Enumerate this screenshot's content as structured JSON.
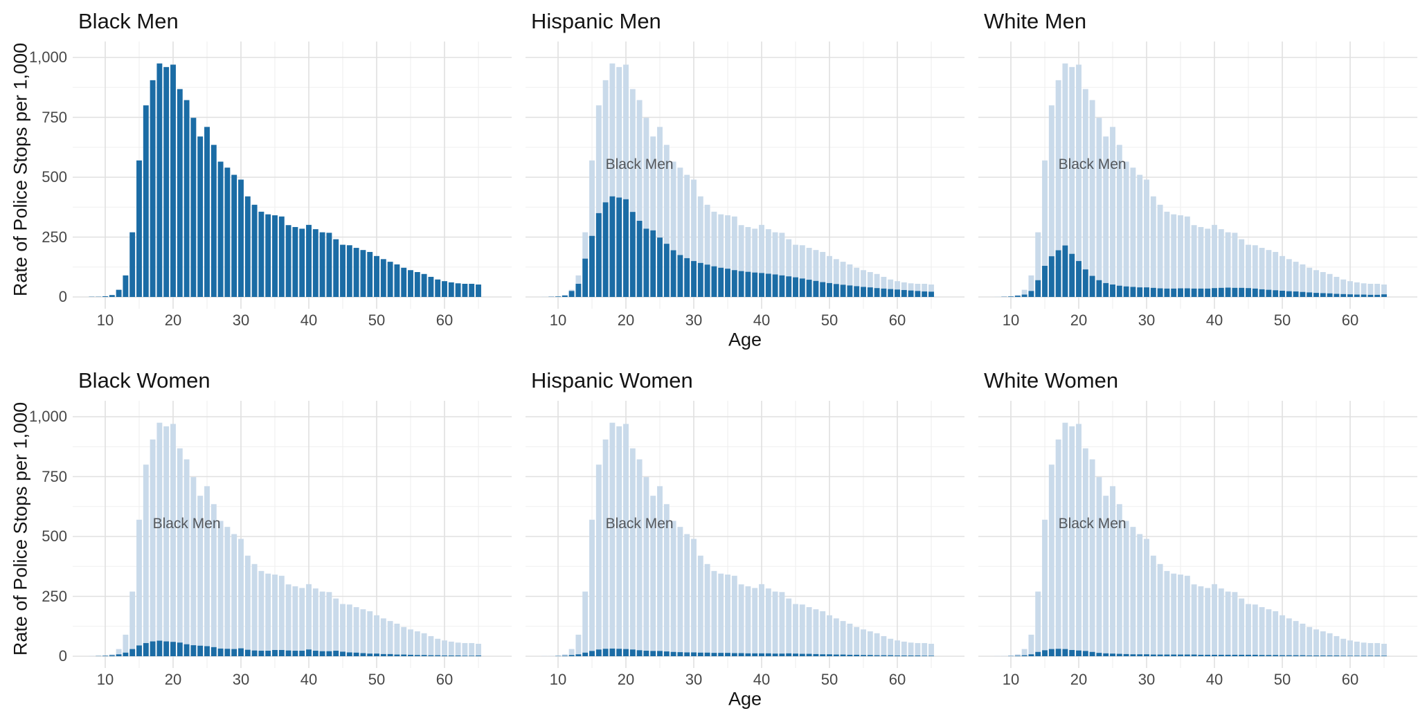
{
  "figure": {
    "background": "#ffffff",
    "bar_color": "#1b6ca5",
    "reference_color": "#c9daea",
    "grid_major_color": "#e0e0e0",
    "grid_minor_color": "#efefef",
    "axis_text_color": "#474747",
    "title_color": "#141414",
    "annotation": {
      "label": "Black Men",
      "color": "#53575c",
      "age": 22,
      "value": 550
    }
  },
  "axes": {
    "x_label": "Age",
    "y_label": "Rate of Police Stops per 1,000",
    "x_ticks": [
      10,
      20,
      30,
      40,
      50,
      60
    ],
    "x_minor_ticks": [
      15,
      25,
      35,
      45,
      55,
      65
    ],
    "y_ticks": [
      0,
      250,
      500,
      750,
      1000
    ],
    "y_minor_ticks": [
      125,
      375,
      625,
      875
    ],
    "x_range": [
      5.2,
      69.8
    ],
    "y_range": [
      0,
      1000
    ]
  },
  "chart_data": {
    "type": "bar",
    "x_field": "age",
    "ages": [
      8,
      9,
      10,
      11,
      12,
      13,
      14,
      15,
      16,
      17,
      18,
      19,
      20,
      21,
      22,
      23,
      24,
      25,
      26,
      27,
      28,
      29,
      30,
      31,
      32,
      33,
      34,
      35,
      36,
      37,
      38,
      39,
      40,
      41,
      42,
      43,
      44,
      45,
      46,
      47,
      48,
      49,
      50,
      51,
      52,
      53,
      54,
      55,
      56,
      57,
      58,
      59,
      60,
      61,
      62,
      63,
      64,
      65
    ],
    "reference_series": {
      "name": "Black Men",
      "values": [
        1,
        1,
        3,
        8,
        30,
        90,
        270,
        570,
        800,
        905,
        975,
        960,
        970,
        868,
        822,
        748,
        670,
        710,
        635,
        565,
        540,
        510,
        490,
        420,
        385,
        356,
        345,
        341,
        336,
        300,
        292,
        285,
        301,
        283,
        270,
        268,
        241,
        218,
        216,
        205,
        196,
        188,
        171,
        158,
        147,
        136,
        122,
        112,
        104,
        96,
        84,
        73,
        66,
        61,
        57,
        55,
        55,
        52
      ]
    },
    "panels": [
      {
        "title": "Black Men",
        "row": 0,
        "col": 0,
        "show_reference": false,
        "values": [
          1,
          1,
          3,
          8,
          30,
          90,
          270,
          570,
          800,
          905,
          975,
          960,
          970,
          868,
          822,
          748,
          670,
          710,
          635,
          565,
          540,
          510,
          490,
          420,
          385,
          356,
          345,
          341,
          336,
          300,
          292,
          285,
          301,
          283,
          270,
          268,
          241,
          218,
          216,
          205,
          196,
          188,
          171,
          158,
          147,
          136,
          122,
          112,
          104,
          96,
          84,
          73,
          66,
          61,
          57,
          55,
          55,
          52
        ]
      },
      {
        "title": "Hispanic Men",
        "row": 0,
        "col": 1,
        "show_reference": true,
        "values": [
          0,
          1,
          2,
          6,
          25,
          55,
          160,
          255,
          350,
          395,
          420,
          415,
          408,
          355,
          318,
          285,
          278,
          248,
          222,
          195,
          175,
          162,
          150,
          142,
          135,
          128,
          122,
          118,
          112,
          108,
          105,
          102,
          100,
          97,
          94,
          90,
          86,
          82,
          77,
          72,
          67,
          62,
          58,
          54,
          51,
          48,
          45,
          42,
          40,
          37,
          35,
          33,
          31,
          29,
          27,
          25,
          23,
          22
        ]
      },
      {
        "title": "White Men",
        "row": 0,
        "col": 2,
        "show_reference": true,
        "values": [
          0,
          1,
          2,
          5,
          10,
          25,
          70,
          130,
          170,
          195,
          215,
          180,
          150,
          115,
          88,
          70,
          58,
          52,
          47,
          44,
          42,
          40,
          40,
          38,
          36,
          35,
          35,
          36,
          36,
          35,
          35,
          35,
          37,
          38,
          39,
          38,
          38,
          37,
          35,
          32,
          30,
          28,
          26,
          24,
          23,
          21,
          19,
          17,
          16,
          15,
          13,
          12,
          11,
          10,
          10,
          9,
          9,
          11
        ]
      },
      {
        "title": "Black Women",
        "row": 1,
        "col": 0,
        "show_reference": true,
        "values": [
          0,
          1,
          2,
          4,
          8,
          15,
          30,
          45,
          55,
          62,
          65,
          62,
          60,
          57,
          50,
          46,
          44,
          42,
          38,
          32,
          31,
          30,
          33,
          27,
          24,
          23,
          23,
          26,
          26,
          24,
          23,
          23,
          28,
          23,
          21,
          21,
          23,
          19,
          16,
          15,
          13,
          11,
          11,
          9,
          9,
          7,
          7,
          6,
          5,
          5,
          4,
          4,
          3,
          3,
          3,
          2,
          2,
          3
        ]
      },
      {
        "title": "Hispanic Women",
        "row": 1,
        "col": 1,
        "show_reference": true,
        "values": [
          0,
          0,
          1,
          2,
          5,
          8,
          15,
          22,
          28,
          31,
          32,
          31,
          30,
          28,
          25,
          23,
          22,
          22,
          20,
          18,
          17,
          16,
          16,
          15,
          15,
          14,
          14,
          14,
          13,
          13,
          12,
          12,
          12,
          12,
          11,
          11,
          12,
          11,
          10,
          10,
          9,
          8,
          8,
          7,
          7,
          6,
          6,
          5,
          5,
          4,
          4,
          4,
          3,
          3,
          3,
          3,
          2,
          2
        ]
      },
      {
        "title": "White Women",
        "row": 1,
        "col": 2,
        "show_reference": true,
        "values": [
          0,
          0,
          1,
          2,
          4,
          8,
          18,
          25,
          30,
          31,
          30,
          26,
          24,
          22,
          18,
          14,
          12,
          11,
          10,
          9,
          8,
          8,
          8,
          7,
          7,
          7,
          7,
          7,
          7,
          7,
          6,
          6,
          6,
          6,
          6,
          6,
          6,
          6,
          6,
          5,
          5,
          5,
          4,
          4,
          4,
          4,
          3,
          3,
          3,
          3,
          3,
          2,
          2,
          2,
          2,
          2,
          2,
          2
        ]
      }
    ]
  }
}
